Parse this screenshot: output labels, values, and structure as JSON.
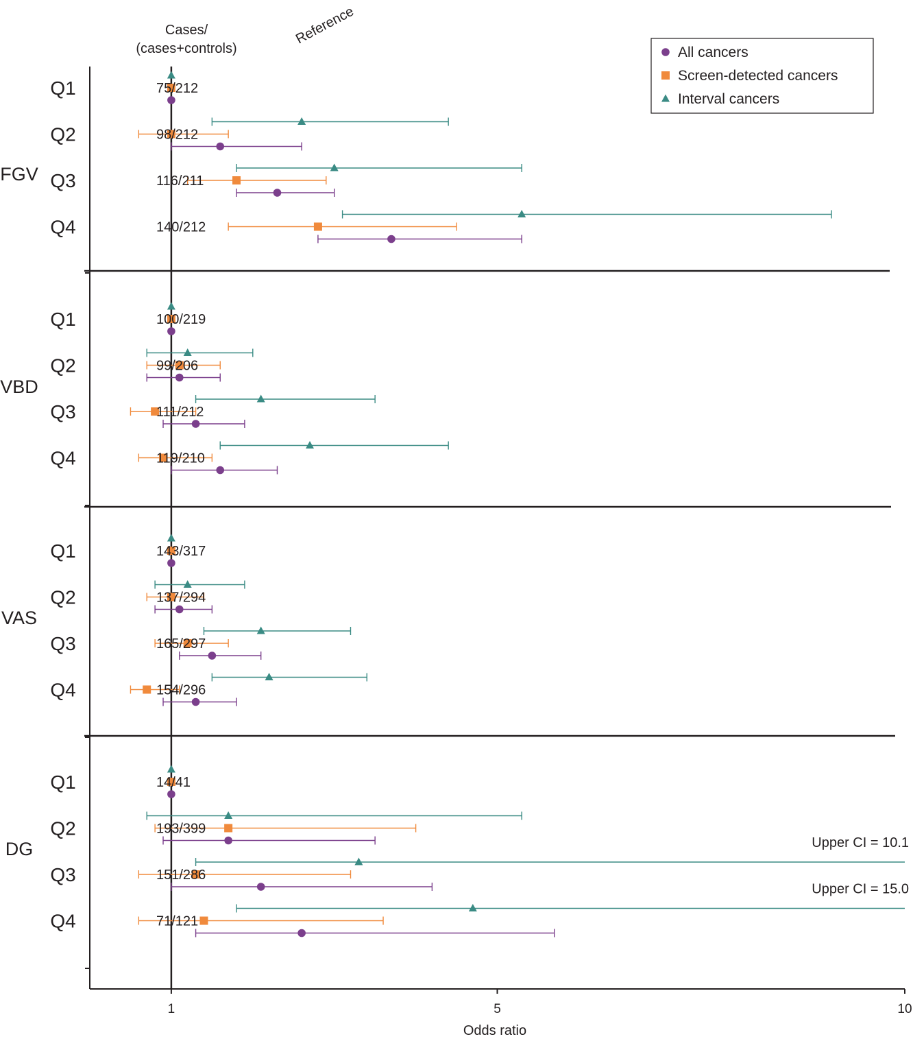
{
  "chart_data": {
    "type": "forest",
    "xlabel": "Odds ratio",
    "xlim": [
      0,
      10
    ],
    "xticks": [
      1,
      5,
      10
    ],
    "reference_value": 1,
    "reference_label": "Reference",
    "column_header_line1": "Cases/",
    "column_header_line2": "(cases+controls)",
    "colors": {
      "all": "#7b3f8c",
      "screen": "#f08a3c",
      "interval": "#3a8b84"
    },
    "legend": [
      {
        "key": "all",
        "label": "All cancers",
        "marker": "circle"
      },
      {
        "key": "screen",
        "label": "Screen-detected cancers",
        "marker": "square"
      },
      {
        "key": "interval",
        "label": "Interval cancers",
        "marker": "triangle"
      }
    ],
    "groups": [
      {
        "name": "FGV",
        "rows": [
          {
            "q": "Q1",
            "count": "75/212",
            "interval": {
              "or": 1.0,
              "ci": null
            },
            "screen": {
              "or": 1.0,
              "ci": null
            },
            "all": {
              "or": 1.0,
              "ci": null
            }
          },
          {
            "q": "Q2",
            "count": "98/212",
            "interval": {
              "or": 2.6,
              "ci": [
                1.5,
                4.4
              ]
            },
            "screen": {
              "or": 1.0,
              "ci": [
                0.6,
                1.7
              ]
            },
            "all": {
              "or": 1.6,
              "ci": [
                1.0,
                2.6
              ]
            }
          },
          {
            "q": "Q3",
            "count": "116/211",
            "interval": {
              "or": 3.0,
              "ci": [
                1.8,
                5.3
              ]
            },
            "screen": {
              "or": 1.8,
              "ci": [
                1.2,
                2.9
              ]
            },
            "all": {
              "or": 2.3,
              "ci": [
                1.8,
                3.0
              ]
            }
          },
          {
            "q": "Q4",
            "count": "140/212",
            "interval": {
              "or": 5.3,
              "ci": [
                3.1,
                9.1
              ]
            },
            "screen": {
              "or": 2.8,
              "ci": [
                1.7,
                4.5
              ]
            },
            "all": {
              "or": 3.7,
              "ci": [
                2.8,
                5.3
              ]
            }
          }
        ]
      },
      {
        "name": "VBD",
        "rows": [
          {
            "q": "Q1",
            "count": "100/219",
            "interval": {
              "or": 1.0,
              "ci": null
            },
            "screen": {
              "or": 1.0,
              "ci": null
            },
            "all": {
              "or": 1.0,
              "ci": null
            }
          },
          {
            "q": "Q2",
            "count": "99/206",
            "interval": {
              "or": 1.2,
              "ci": [
                0.7,
                2.0
              ]
            },
            "screen": {
              "or": 1.1,
              "ci": [
                0.7,
                1.6
              ]
            },
            "all": {
              "or": 1.1,
              "ci": [
                0.7,
                1.6
              ]
            }
          },
          {
            "q": "Q3",
            "count": "111/212",
            "interval": {
              "or": 2.1,
              "ci": [
                1.3,
                3.5
              ]
            },
            "screen": {
              "or": 0.8,
              "ci": [
                0.5,
                1.3
              ]
            },
            "all": {
              "or": 1.3,
              "ci": [
                0.9,
                1.9
              ]
            }
          },
          {
            "q": "Q4",
            "count": "119/210",
            "interval": {
              "or": 2.7,
              "ci": [
                1.6,
                4.4
              ]
            },
            "screen": {
              "or": 0.9,
              "ci": [
                0.6,
                1.5
              ]
            },
            "all": {
              "or": 1.6,
              "ci": [
                1.0,
                2.3
              ]
            }
          }
        ]
      },
      {
        "name": "VAS",
        "rows": [
          {
            "q": "Q1",
            "count": "143/317",
            "interval": {
              "or": 1.0,
              "ci": null
            },
            "screen": {
              "or": 1.0,
              "ci": null
            },
            "all": {
              "or": 1.0,
              "ci": null
            }
          },
          {
            "q": "Q2",
            "count": "137/294",
            "interval": {
              "or": 1.2,
              "ci": [
                0.8,
                1.9
              ]
            },
            "screen": {
              "or": 1.0,
              "ci": [
                0.7,
                1.4
              ]
            },
            "all": {
              "or": 1.1,
              "ci": [
                0.8,
                1.5
              ]
            }
          },
          {
            "q": "Q3",
            "count": "165/297",
            "interval": {
              "or": 2.1,
              "ci": [
                1.4,
                3.2
              ]
            },
            "screen": {
              "or": 1.2,
              "ci": [
                0.8,
                1.7
              ]
            },
            "all": {
              "or": 1.5,
              "ci": [
                1.1,
                2.1
              ]
            }
          },
          {
            "q": "Q4",
            "count": "154/296",
            "interval": {
              "or": 2.2,
              "ci": [
                1.5,
                3.4
              ]
            },
            "screen": {
              "or": 0.7,
              "ci": [
                0.5,
                1.1
              ]
            },
            "all": {
              "or": 1.3,
              "ci": [
                0.9,
                1.8
              ]
            }
          }
        ]
      },
      {
        "name": "DG",
        "rows": [
          {
            "q": "Q1",
            "count": "14/41",
            "interval": {
              "or": 1.0,
              "ci": null
            },
            "screen": {
              "or": 1.0,
              "ci": null
            },
            "all": {
              "or": 1.0,
              "ci": null
            }
          },
          {
            "q": "Q2",
            "count": "193/399",
            "interval": {
              "or": 1.7,
              "ci": [
                0.7,
                5.3
              ]
            },
            "screen": {
              "or": 1.7,
              "ci": [
                0.8,
                4.0
              ]
            },
            "all": {
              "or": 1.7,
              "ci": [
                0.9,
                3.5
              ]
            }
          },
          {
            "q": "Q3",
            "count": "151/286",
            "interval": {
              "or": 3.3,
              "ci": [
                1.3,
                10.1
              ],
              "ci_upper_label": "Upper CI = 10.1"
            },
            "screen": {
              "or": 1.3,
              "ci": [
                0.6,
                3.2
              ]
            },
            "all": {
              "or": 2.1,
              "ci": [
                1.0,
                4.2
              ]
            }
          },
          {
            "q": "Q4",
            "count": "71/121",
            "interval": {
              "or": 4.7,
              "ci": [
                1.8,
                15.0
              ],
              "ci_upper_label": "Upper CI = 15.0"
            },
            "screen": {
              "or": 1.4,
              "ci": [
                0.6,
                3.6
              ]
            },
            "all": {
              "or": 2.6,
              "ci": [
                1.3,
                5.7
              ]
            }
          }
        ]
      }
    ]
  }
}
